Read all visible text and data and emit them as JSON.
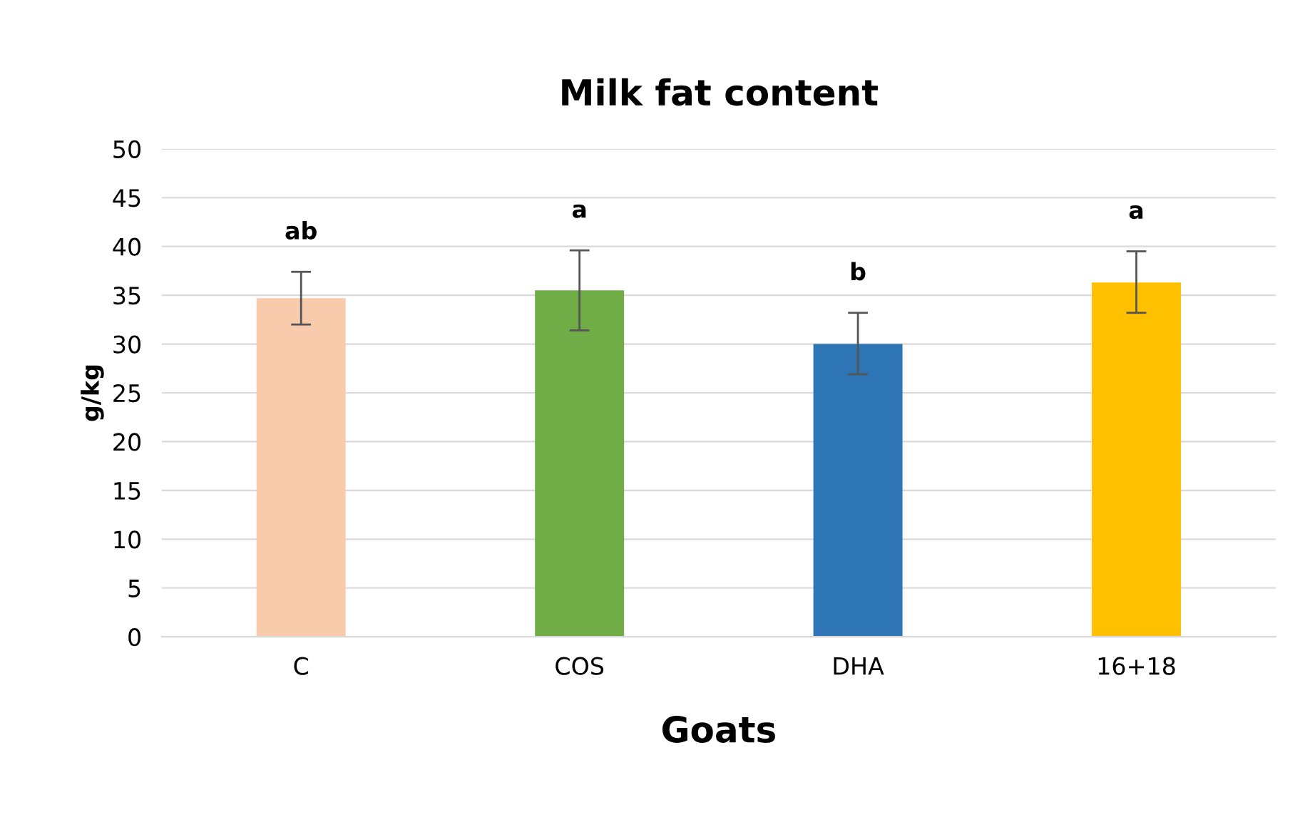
{
  "chart_data": {
    "type": "bar",
    "title": "Milk fat content",
    "xlabel": "Goats",
    "ylabel": "g/kg",
    "categories": [
      "C",
      "COS",
      "DHA",
      "16+18"
    ],
    "values": [
      34.7,
      35.5,
      30.0,
      36.3
    ],
    "colors": [
      "#f8cbad",
      "#70ad47",
      "#2e75b6",
      "#ffc000"
    ],
    "errors": [
      [
        32.0,
        37.4
      ],
      [
        31.4,
        39.6
      ],
      [
        26.9,
        33.2
      ],
      [
        33.2,
        39.5
      ]
    ],
    "ylim": [
      0,
      50
    ],
    "yticks": [
      0,
      5,
      10,
      15,
      20,
      25,
      30,
      35,
      40,
      45,
      50
    ],
    "grid": "y",
    "legend": false,
    "annotations": [
      "ab",
      "a",
      "b",
      "a"
    ]
  }
}
